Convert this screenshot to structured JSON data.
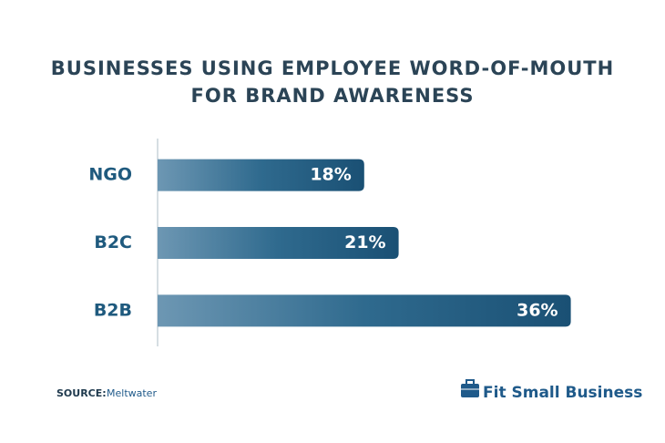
{
  "chart_data": {
    "type": "bar",
    "orientation": "horizontal",
    "title": [
      "BUSINESSES USING EMPLOYEE WORD-OF-MOUTH",
      "FOR BRAND AWARENESS"
    ],
    "categories": [
      "NGO",
      "B2C",
      "B2B"
    ],
    "values": [
      18,
      21,
      36
    ],
    "value_labels": [
      "18%",
      "21%",
      "36%"
    ],
    "color": "#1c5477",
    "xlim": [
      0,
      40
    ],
    "source_label": "SOURCE:",
    "source": "Meltwater",
    "brand": "Fit Small Business"
  }
}
